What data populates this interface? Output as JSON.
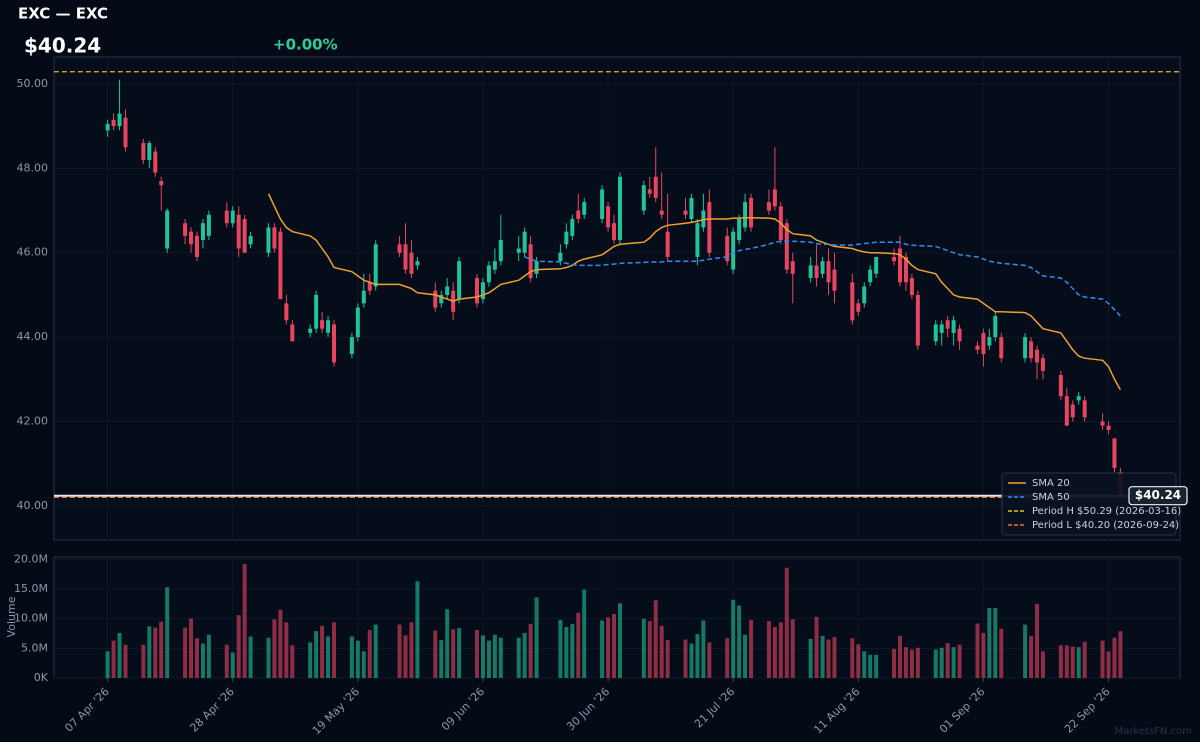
{
  "chart_data": {
    "type": "candlestick",
    "title": "EXC — EXC",
    "last_price": {
      "value": 40.24,
      "label": "$40.24"
    },
    "change": {
      "value": 0,
      "label": "+0.00%"
    },
    "watermark": "MarketsFN.com",
    "volume_label": "Volume",
    "up_color": "#22c39a",
    "down_color": "#ea4560",
    "grid": true,
    "legend": "lower right",
    "xlim": [
      "2026-03-29",
      "2026-10-04"
    ],
    "xticks": [
      {
        "value": "2026-04-07",
        "label": "07 Apr '26"
      },
      {
        "value": "2026-04-28",
        "label": "28 Apr '26"
      },
      {
        "value": "2026-05-19",
        "label": "19 May '26"
      },
      {
        "value": "2026-06-09",
        "label": "09 Jun '26"
      },
      {
        "value": "2026-06-30",
        "label": "30 Jun '26"
      },
      {
        "value": "2026-07-21",
        "label": "21 Jul '26"
      },
      {
        "value": "2026-08-11",
        "label": "11 Aug '26"
      },
      {
        "value": "2026-09-01",
        "label": "01 Sep '26"
      },
      {
        "value": "2026-09-22",
        "label": "22 Sep '26"
      }
    ],
    "ylim": [
      39.19,
      50.64
    ],
    "yticks": [
      {
        "value": 40,
        "label": "40.00"
      },
      {
        "value": 42,
        "label": "42.00"
      },
      {
        "value": 44,
        "label": "44.00"
      },
      {
        "value": 46,
        "label": "46.00"
      },
      {
        "value": 48,
        "label": "48.00"
      },
      {
        "value": 50,
        "label": "50.00"
      }
    ],
    "volume_ylim": [
      0,
      20400000
    ],
    "volume_yticks": [
      {
        "value": 0,
        "label": "0K"
      },
      {
        "value": 5000000,
        "label": "5.0M"
      },
      {
        "value": 10000000,
        "label": "10.0M"
      },
      {
        "value": 15000000,
        "label": "15.0M"
      },
      {
        "value": 20000000,
        "label": "20.0M"
      }
    ],
    "dates": [
      "2026-04-07",
      "2026-04-08",
      "2026-04-09",
      "2026-04-10",
      "2026-04-13",
      "2026-04-14",
      "2026-04-15",
      "2026-04-16",
      "2026-04-17",
      "2026-04-20",
      "2026-04-21",
      "2026-04-22",
      "2026-04-23",
      "2026-04-24",
      "2026-04-27",
      "2026-04-28",
      "2026-04-29",
      "2026-04-30",
      "2026-05-01",
      "2026-05-04",
      "2026-05-05",
      "2026-05-06",
      "2026-05-07",
      "2026-05-08",
      "2026-05-11",
      "2026-05-12",
      "2026-05-13",
      "2026-05-14",
      "2026-05-15",
      "2026-05-18",
      "2026-05-19",
      "2026-05-20",
      "2026-05-21",
      "2026-05-22",
      "2026-05-26",
      "2026-05-27",
      "2026-05-28",
      "2026-05-29",
      "2026-06-01",
      "2026-06-02",
      "2026-06-03",
      "2026-06-04",
      "2026-06-05",
      "2026-06-08",
      "2026-06-09",
      "2026-06-10",
      "2026-06-11",
      "2026-06-12",
      "2026-06-15",
      "2026-06-16",
      "2026-06-17",
      "2026-06-18",
      "2026-06-22",
      "2026-06-23",
      "2026-06-24",
      "2026-06-25",
      "2026-06-26",
      "2026-06-29",
      "2026-06-30",
      "2026-07-01",
      "2026-07-02",
      "2026-07-06",
      "2026-07-07",
      "2026-07-08",
      "2026-07-09",
      "2026-07-10",
      "2026-07-13",
      "2026-07-14",
      "2026-07-15",
      "2026-07-16",
      "2026-07-17",
      "2026-07-20",
      "2026-07-21",
      "2026-07-22",
      "2026-07-23",
      "2026-07-24",
      "2026-07-27",
      "2026-07-28",
      "2026-07-29",
      "2026-07-30",
      "2026-07-31",
      "2026-08-03",
      "2026-08-04",
      "2026-08-05",
      "2026-08-06",
      "2026-08-07",
      "2026-08-10",
      "2026-08-11",
      "2026-08-12",
      "2026-08-13",
      "2026-08-14",
      "2026-08-17",
      "2026-08-18",
      "2026-08-19",
      "2026-08-20",
      "2026-08-21",
      "2026-08-24",
      "2026-08-25",
      "2026-08-26",
      "2026-08-27",
      "2026-08-28",
      "2026-08-31",
      "2026-09-01",
      "2026-09-02",
      "2026-09-03",
      "2026-09-04",
      "2026-09-08",
      "2026-09-09",
      "2026-09-10",
      "2026-09-11",
      "2026-09-14",
      "2026-09-15",
      "2026-09-16",
      "2026-09-17",
      "2026-09-18",
      "2026-09-21",
      "2026-09-22",
      "2026-09-23",
      "2026-09-24"
    ],
    "open": [
      48.9,
      49.15,
      49.0,
      49.2,
      48.6,
      48.2,
      48.4,
      47.7,
      46.1,
      46.7,
      46.5,
      46.4,
      46.3,
      46.4,
      47.0,
      46.7,
      46.9,
      46.8,
      46.2,
      46.0,
      46.6,
      46.5,
      44.8,
      44.3,
      44.1,
      44.2,
      44.4,
      44.1,
      44.3,
      43.6,
      44.0,
      44.8,
      45.3,
      45.2,
      46.2,
      46.2,
      46.0,
      45.7,
      45.1,
      44.8,
      45.0,
      45.1,
      44.9,
      45.4,
      44.9,
      45.3,
      45.6,
      45.8,
      46.0,
      46.0,
      46.2,
      45.5,
      45.8,
      46.2,
      46.4,
      47.0,
      46.9,
      46.8,
      47.1,
      46.7,
      46.3,
      47.0,
      47.5,
      47.8,
      47.0,
      46.5,
      47.0,
      46.8,
      45.9,
      46.6,
      47.2,
      46.4,
      45.6,
      46.3,
      46.6,
      47.3,
      47.2,
      47.5,
      47.1,
      46.7,
      45.8,
      45.4,
      45.7,
      45.5,
      45.8,
      45.6,
      45.3,
      44.8,
      44.8,
      45.3,
      45.5,
      45.9,
      46.1,
      45.9,
      45.4,
      45.0,
      43.9,
      44.1,
      44.4,
      44.1,
      44.2,
      43.8,
      44.1,
      43.8,
      44.0,
      44.0,
      43.5,
      43.9,
      43.7,
      43.5,
      43.1,
      42.6,
      42.4,
      42.5,
      42.5,
      42.0,
      41.9,
      41.6,
      40.8
    ],
    "high": [
      49.15,
      49.3,
      50.1,
      49.4,
      48.7,
      48.65,
      48.5,
      47.8,
      47.05,
      46.8,
      46.6,
      46.5,
      46.8,
      47.0,
      47.2,
      47.1,
      47.1,
      46.9,
      46.5,
      46.7,
      46.7,
      46.6,
      45.0,
      44.4,
      44.3,
      45.1,
      44.6,
      44.5,
      44.4,
      44.1,
      44.8,
      45.5,
      45.5,
      46.3,
      46.4,
      46.7,
      46.3,
      45.9,
      45.3,
      45.1,
      45.4,
      45.3,
      45.9,
      45.5,
      45.4,
      45.8,
      46.1,
      46.9,
      46.4,
      46.6,
      46.4,
      45.9,
      46.2,
      46.7,
      46.9,
      47.4,
      47.3,
      47.6,
      47.2,
      46.9,
      47.9,
      47.7,
      47.8,
      48.5,
      47.9,
      47.4,
      47.3,
      47.4,
      46.8,
      47.4,
      47.5,
      46.6,
      46.6,
      46.9,
      47.4,
      47.4,
      47.5,
      48.5,
      47.2,
      46.8,
      46.0,
      45.9,
      46.2,
      45.9,
      46.1,
      46.0,
      45.5,
      44.9,
      45.3,
      45.7,
      45.9,
      46.1,
      46.4,
      46.0,
      45.5,
      45.1,
      44.4,
      44.4,
      44.5,
      44.5,
      44.3,
      43.9,
      44.2,
      44.2,
      44.6,
      44.1,
      44.1,
      44.0,
      43.8,
      43.6,
      43.2,
      42.8,
      42.5,
      42.7,
      42.6,
      42.2,
      42.0,
      41.6,
      40.9
    ],
    "low": [
      48.75,
      48.9,
      48.9,
      48.4,
      48.1,
      48.0,
      47.8,
      47.0,
      46.0,
      46.2,
      46.0,
      45.8,
      46.1,
      46.3,
      46.6,
      46.6,
      45.9,
      46.0,
      46.1,
      45.9,
      46.0,
      44.9,
      44.3,
      43.9,
      44.0,
      44.1,
      44.1,
      44.0,
      43.3,
      43.5,
      43.9,
      44.7,
      45.0,
      45.1,
      45.9,
      45.5,
      45.4,
      45.6,
      44.6,
      44.7,
      44.9,
      44.4,
      44.8,
      44.7,
      44.8,
      45.2,
      45.5,
      45.7,
      45.8,
      45.9,
      45.3,
      45.4,
      45.7,
      46.1,
      46.3,
      46.7,
      46.8,
      46.7,
      46.5,
      46.2,
      46.2,
      46.9,
      47.3,
      47.2,
      46.8,
      45.8,
      46.8,
      46.7,
      45.7,
      46.5,
      45.9,
      45.7,
      45.5,
      46.2,
      46.5,
      46.5,
      46.9,
      47.0,
      46.2,
      45.5,
      44.8,
      45.3,
      45.2,
      45.4,
      45.0,
      44.8,
      44.3,
      44.5,
      44.7,
      45.2,
      45.4,
      45.7,
      45.2,
      45.1,
      44.9,
      43.7,
      43.8,
      43.8,
      44.0,
      43.8,
      43.7,
      43.6,
      43.3,
      43.7,
      43.9,
      43.4,
      43.4,
      43.4,
      43.0,
      43.0,
      42.5,
      41.9,
      42.0,
      42.4,
      42.0,
      41.8,
      41.7,
      40.8,
      40.2
    ],
    "close": [
      49.05,
      49.0,
      49.3,
      48.5,
      48.2,
      48.6,
      47.9,
      47.6,
      47.0,
      46.4,
      46.2,
      45.9,
      46.7,
      46.9,
      46.7,
      47.0,
      46.1,
      46.0,
      46.4,
      46.6,
      46.1,
      44.9,
      44.4,
      43.9,
      44.2,
      45.0,
      44.2,
      44.4,
      43.4,
      44.0,
      44.7,
      45.1,
      45.1,
      46.2,
      46.0,
      45.6,
      45.5,
      45.8,
      44.7,
      45.0,
      45.2,
      44.6,
      45.8,
      44.8,
      45.3,
      45.7,
      45.8,
      46.3,
      46.1,
      46.5,
      45.4,
      45.8,
      46.0,
      46.5,
      46.8,
      46.8,
      47.2,
      47.5,
      46.6,
      46.3,
      47.8,
      47.6,
      47.4,
      47.3,
      46.9,
      45.9,
      46.9,
      47.3,
      46.7,
      47.0,
      46.0,
      45.8,
      46.5,
      46.8,
      47.2,
      46.6,
      47.0,
      47.1,
      46.3,
      45.6,
      45.5,
      45.7,
      45.4,
      45.8,
      45.3,
      45.1,
      44.4,
      44.6,
      45.2,
      45.6,
      45.9,
      45.8,
      45.3,
      45.3,
      45.0,
      43.8,
      44.3,
      44.3,
      44.2,
      44.4,
      43.9,
      43.7,
      43.6,
      44.0,
      44.5,
      43.5,
      44.0,
      43.5,
      43.4,
      43.2,
      42.6,
      41.9,
      42.1,
      42.6,
      42.1,
      41.9,
      41.8,
      40.9,
      40.24
    ],
    "volume": [
      4500000,
      6300000,
      7600000,
      5600000,
      5600000,
      8700000,
      8500000,
      9500000,
      15300000,
      8500000,
      10000000,
      6700000,
      5800000,
      7300000,
      5600000,
      4300000,
      10600000,
      19200000,
      7000000,
      6800000,
      9900000,
      11500000,
      9400000,
      5500000,
      6000000,
      7900000,
      8800000,
      7000000,
      9400000,
      7000000,
      6300000,
      4500000,
      8100000,
      9000000,
      9000000,
      7200000,
      9400000,
      16300000,
      8000000,
      6400000,
      11600000,
      8200000,
      8400000,
      8100000,
      7200000,
      6300000,
      7300000,
      6800000,
      6800000,
      7600000,
      9100000,
      13600000,
      9800000,
      8600000,
      9100000,
      11000000,
      14900000,
      9700000,
      10200000,
      10800000,
      12600000,
      10000000,
      9600000,
      13100000,
      8800000,
      6400000,
      6500000,
      5800000,
      7400000,
      9700000,
      6000000,
      6700000,
      13200000,
      12200000,
      7300000,
      9800000,
      9600000,
      8600000,
      9400000,
      18600000,
      9900000,
      6600000,
      10300000,
      7100000,
      6500000,
      6900000,
      6700000,
      5700000,
      4500000,
      3900000,
      3900000,
      4900000,
      7100000,
      5200000,
      4800000,
      5100000,
      4800000,
      5100000,
      5900000,
      5200000,
      5600000,
      9200000,
      7600000,
      11800000,
      11800000,
      8300000,
      9000000,
      7100000,
      12500000,
      4500000,
      5500000,
      5500000,
      5300000,
      5200000,
      6100000,
      6300000,
      4500000,
      6800000,
      7900000
    ],
    "series": [
      {
        "name": "SMA 20",
        "color": "#f0a030",
        "dashed": false,
        "values": [
          null,
          null,
          null,
          null,
          null,
          null,
          null,
          null,
          null,
          null,
          null,
          null,
          null,
          null,
          null,
          null,
          null,
          null,
          null,
          47.4,
          47.1,
          46.8,
          46.6,
          46.5,
          46.4,
          46.3,
          46.1,
          45.9,
          45.65,
          45.55,
          45.45,
          45.35,
          45.3,
          45.25,
          45.25,
          45.2,
          45.15,
          45.05,
          45.0,
          44.95,
          44.9,
          44.85,
          44.9,
          44.95,
          45.0,
          45.05,
          45.15,
          45.25,
          45.35,
          45.45,
          45.55,
          45.6,
          45.62,
          45.65,
          45.7,
          45.8,
          45.85,
          45.95,
          46.05,
          46.15,
          46.2,
          46.25,
          46.35,
          46.5,
          46.6,
          46.65,
          46.7,
          46.72,
          46.75,
          46.78,
          46.8,
          46.8,
          46.82,
          46.82,
          46.83,
          46.83,
          46.82,
          46.8,
          46.7,
          46.55,
          46.45,
          46.4,
          46.3,
          46.25,
          46.2,
          46.15,
          46.1,
          46.05,
          46.02,
          46.0,
          46.0,
          45.98,
          45.95,
          45.85,
          45.7,
          45.6,
          45.5,
          45.3,
          45.15,
          45.0,
          44.95,
          44.9,
          44.8,
          44.7,
          44.6,
          44.6,
          44.58,
          44.5,
          44.35,
          44.2,
          44.1,
          43.9,
          43.7,
          43.55,
          43.5,
          43.45,
          43.3,
          43.0,
          42.75
        ]
      },
      {
        "name": "SMA 50",
        "color": "#2f8ff0",
        "dashed": true,
        "values": [
          null,
          null,
          null,
          null,
          null,
          null,
          null,
          null,
          null,
          null,
          null,
          null,
          null,
          null,
          null,
          null,
          null,
          null,
          null,
          null,
          null,
          null,
          null,
          null,
          null,
          null,
          null,
          null,
          null,
          null,
          null,
          null,
          null,
          null,
          null,
          null,
          null,
          null,
          null,
          null,
          null,
          null,
          null,
          null,
          null,
          null,
          null,
          null,
          null,
          45.9,
          45.85,
          45.8,
          45.78,
          45.75,
          45.72,
          45.7,
          45.7,
          45.7,
          45.72,
          45.73,
          45.75,
          45.77,
          45.78,
          45.78,
          45.78,
          45.8,
          45.8,
          45.8,
          45.8,
          45.82,
          45.85,
          45.9,
          46.0,
          46.05,
          46.08,
          46.1,
          46.2,
          46.25,
          46.27,
          46.28,
          46.27,
          46.25,
          46.22,
          46.2,
          46.2,
          46.18,
          46.18,
          46.2,
          46.22,
          46.23,
          46.25,
          46.25,
          46.25,
          46.2,
          46.18,
          46.17,
          46.15,
          46.1,
          46.05,
          46.0,
          45.95,
          45.9,
          45.85,
          45.8,
          45.77,
          45.75,
          45.7,
          45.65,
          45.55,
          45.45,
          45.4,
          45.3,
          45.15,
          45.0,
          44.95,
          44.9,
          44.8,
          44.65,
          44.5
        ]
      }
    ],
    "reference_lines": [
      {
        "name": "Period H $50.29 (2026-03-16)",
        "value": 50.29,
        "color": "#d9c31c"
      },
      {
        "name": "Period L $40.20 (2026-09-24)",
        "value": 40.2,
        "color": "#e8743b"
      }
    ]
  }
}
